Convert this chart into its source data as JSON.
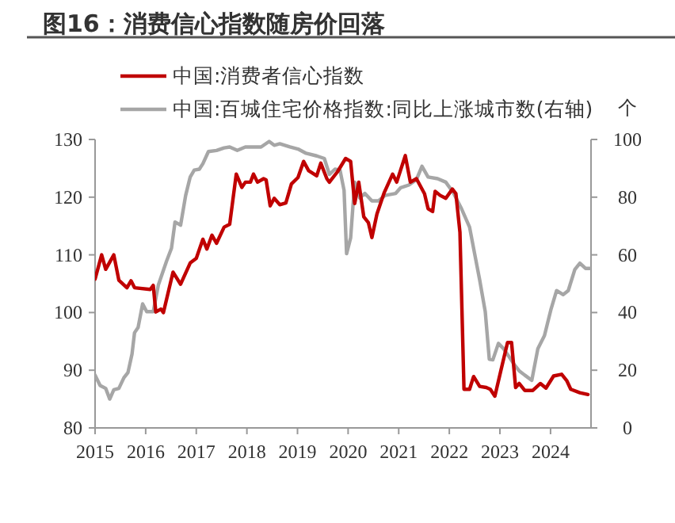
{
  "chart_data": {
    "type": "line",
    "title": "图16：消费信心指数随房价回落",
    "y2label": "个",
    "xlim": [
      2015,
      2024.8
    ],
    "xticks": [
      2015,
      2016,
      2017,
      2018,
      2019,
      2020,
      2021,
      2022,
      2023,
      2024
    ],
    "ylim": [
      80,
      130
    ],
    "yticks": [
      80,
      90,
      100,
      110,
      120,
      130
    ],
    "y2lim": [
      0,
      100
    ],
    "y2ticks": [
      0,
      20,
      40,
      60,
      80,
      100
    ],
    "legend": "top",
    "grid": false,
    "marker": "none",
    "line_style": "solid",
    "series": [
      {
        "name": "中国:消费者信心指数",
        "color": "#c00000",
        "x": [
          2015.0,
          2015.13,
          2015.21,
          2015.37,
          2015.47,
          2015.63,
          2015.71,
          2015.78,
          2016.09,
          2016.15,
          2016.2,
          2016.3,
          2016.35,
          2016.54,
          2016.69,
          2016.88,
          2017.0,
          2017.13,
          2017.21,
          2017.31,
          2017.4,
          2017.55,
          2017.66,
          2017.79,
          2017.9,
          2017.97,
          2018.07,
          2018.13,
          2018.21,
          2018.33,
          2018.38,
          2018.46,
          2018.54,
          2018.65,
          2018.77,
          2018.88,
          2019.01,
          2019.12,
          2019.22,
          2019.38,
          2019.46,
          2019.58,
          2019.63,
          2019.79,
          2019.95,
          2020.05,
          2020.13,
          2020.21,
          2020.31,
          2020.4,
          2020.47,
          2020.57,
          2020.71,
          2020.88,
          2020.96,
          2021.13,
          2021.23,
          2021.35,
          2021.51,
          2021.58,
          2021.67,
          2021.72,
          2021.82,
          2021.93,
          2022.06,
          2022.13,
          2022.21,
          2022.29,
          2022.4,
          2022.48,
          2022.6,
          2022.73,
          2022.81,
          2022.9,
          2023.02,
          2023.15,
          2023.23,
          2023.31,
          2023.38,
          2023.49,
          2023.65,
          2023.8,
          2023.91,
          2024.06,
          2024.22,
          2024.32,
          2024.4,
          2024.58,
          2024.74
        ],
        "values": [
          105.8,
          110,
          107.5,
          110,
          105.6,
          104.3,
          105.5,
          104.3,
          104,
          104.7,
          100.1,
          100.6,
          100,
          107,
          104.9,
          108.6,
          109.4,
          112.7,
          111,
          113.4,
          112,
          114.8,
          115.3,
          124,
          121.7,
          122.6,
          122.6,
          124,
          122.6,
          123.2,
          123,
          118.5,
          119.8,
          118.7,
          119,
          122.3,
          123.4,
          126.2,
          124.6,
          123.7,
          125.9,
          123.2,
          122.6,
          124.4,
          126.7,
          126.2,
          118.9,
          122.6,
          116.6,
          115.6,
          113,
          117.1,
          120.7,
          124,
          122.6,
          127.2,
          122.6,
          123.2,
          120.6,
          118,
          117.5,
          121,
          120.3,
          119.8,
          121.4,
          120.6,
          113.9,
          86.7,
          86.7,
          88.9,
          87.2,
          87,
          86.7,
          85.5,
          90,
          94.8,
          94.8,
          87,
          87.7,
          86.5,
          86.5,
          87.7,
          86.9,
          89,
          89.3,
          88.2,
          86.7,
          86.1,
          85.8
        ]
      },
      {
        "name": "中国:百城住宅价格指数:同比上涨城市数(右轴)",
        "color": "#a6a6a6",
        "axis": "y2",
        "x": [
          2015.0,
          2015.1,
          2015.21,
          2015.29,
          2015.37,
          2015.47,
          2015.57,
          2015.65,
          2015.73,
          2015.78,
          2015.85,
          2015.94,
          2016.02,
          2016.15,
          2016.25,
          2016.41,
          2016.51,
          2016.58,
          2016.69,
          2016.79,
          2016.88,
          2016.96,
          2017.06,
          2017.13,
          2017.24,
          2017.4,
          2017.55,
          2017.66,
          2017.81,
          2017.97,
          2018.28,
          2018.44,
          2018.54,
          2018.65,
          2018.85,
          2019.01,
          2019.17,
          2019.38,
          2019.53,
          2019.63,
          2019.74,
          2019.84,
          2019.92,
          2019.97,
          2020.05,
          2020.13,
          2020.23,
          2020.33,
          2020.47,
          2020.6,
          2020.73,
          2020.94,
          2021.04,
          2021.2,
          2021.35,
          2021.46,
          2021.58,
          2021.77,
          2021.93,
          2022.08,
          2022.24,
          2022.4,
          2022.5,
          2022.6,
          2022.71,
          2022.79,
          2022.86,
          2022.97,
          2023.07,
          2023.18,
          2023.28,
          2023.38,
          2023.49,
          2023.63,
          2023.75,
          2023.88,
          2024.01,
          2024.12,
          2024.25,
          2024.35,
          2024.48,
          2024.58,
          2024.69,
          2024.79
        ],
        "values": [
          18.3,
          14.7,
          13.7,
          10,
          13.2,
          13.7,
          17.4,
          19.2,
          25.6,
          33,
          34.8,
          43,
          40.3,
          40.3,
          49.5,
          57.7,
          62.3,
          71.4,
          70.3,
          80.6,
          87,
          89.4,
          89.7,
          91.6,
          95.8,
          96.2,
          97.1,
          97.4,
          96.2,
          97.4,
          97.4,
          99.3,
          98,
          98.5,
          97.4,
          96.7,
          95.2,
          94.3,
          93.4,
          87.9,
          89.7,
          89.4,
          82.4,
          60.4,
          65.9,
          85.2,
          79.7,
          81.3,
          78.7,
          78.7,
          80.6,
          81.3,
          83.3,
          84.2,
          86.1,
          90.7,
          87,
          86.4,
          85.2,
          81.5,
          76,
          69.6,
          60.4,
          51.3,
          40.3,
          23.8,
          23.6,
          29.3,
          27.5,
          24.7,
          22,
          19.8,
          18.3,
          16.5,
          27.5,
          32,
          41.2,
          47.6,
          46.2,
          47.6,
          54.9,
          57.1,
          55.3,
          55.3
        ]
      }
    ]
  }
}
